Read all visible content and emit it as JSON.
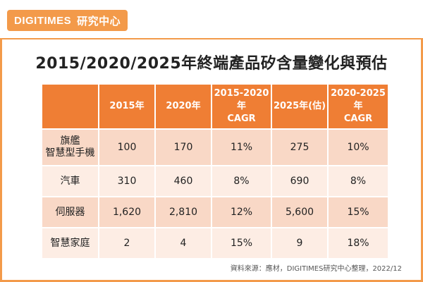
{
  "header": {
    "brand": "DIGITIMES",
    "unit": "研究中心"
  },
  "title": "2015/2020/2025年終端產品矽含量變化與預估",
  "table": {
    "columns": [
      "",
      "2015年",
      "2020年",
      "2015-2020年\nCAGR",
      "2025年(估)",
      "2020-2025年\nCAGR"
    ],
    "rows": [
      {
        "label": "旗艦\n智慧型手機",
        "cells": [
          "100",
          "170",
          "11%",
          "275",
          "10%"
        ]
      },
      {
        "label": "汽車",
        "cells": [
          "310",
          "460",
          "8%",
          "690",
          "8%"
        ]
      },
      {
        "label": "伺服器",
        "cells": [
          "1,620",
          "2,810",
          "12%",
          "5,600",
          "15%"
        ]
      },
      {
        "label": "智慧家庭",
        "cells": [
          "2",
          "4",
          "15%",
          "9",
          "18%"
        ]
      }
    ]
  },
  "source": "資料來源：應材，DIGITIMES研究中心整理，2022/12",
  "colors": {
    "accent": "#EF7E34",
    "row_dark": "#F9D8C6",
    "row_light": "#FDEDE4"
  }
}
